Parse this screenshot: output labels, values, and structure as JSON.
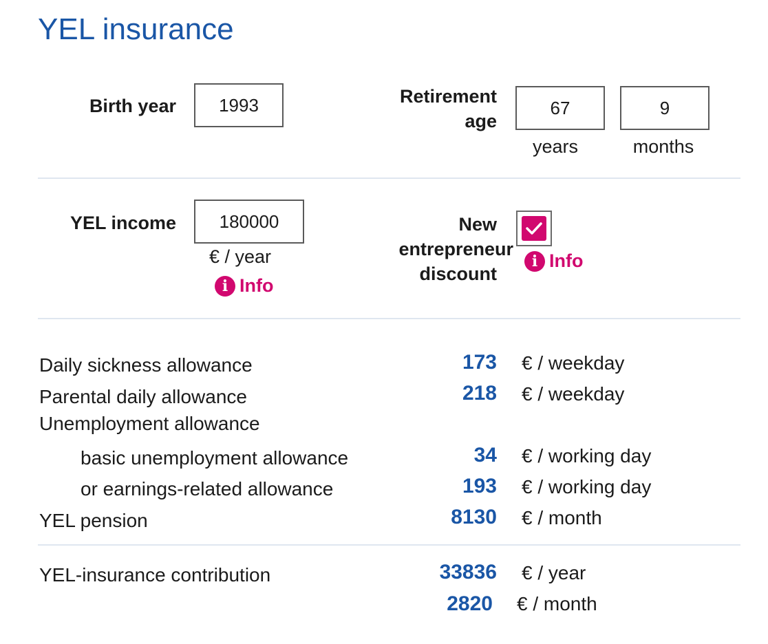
{
  "title": "YEL insurance",
  "birth_year": {
    "label": "Birth year",
    "value": "1993"
  },
  "retirement_age": {
    "label_line1": "Retirement",
    "label_line2": "age",
    "years_value": "67",
    "months_value": "9",
    "years_label": "years",
    "months_label": "months"
  },
  "yel_income": {
    "label": "YEL income",
    "value": "180000",
    "unit": "€ / year",
    "info": "Info"
  },
  "new_entrepreneur_discount": {
    "label_line1": "New",
    "label_line2": "entrepreneur",
    "label_line3": "discount",
    "checked": true,
    "info": "Info"
  },
  "results": {
    "daily_sickness": {
      "label": "Daily sickness allowance",
      "value": "173",
      "unit": "€ / weekday"
    },
    "parental_daily": {
      "label": "Parental daily allowance",
      "value": "218",
      "unit": "€ / weekday"
    },
    "unemployment": {
      "label": "Unemployment allowance"
    },
    "basic_unemployment": {
      "label": "basic unemployment allowance",
      "value": "34",
      "unit": "€ / working day"
    },
    "earnings_related": {
      "label": "or earnings-related allowance",
      "value": "193",
      "unit": "€ / working day"
    },
    "yel_pension": {
      "label": "YEL pension",
      "value": "8130",
      "unit": "€ / month"
    }
  },
  "contribution": {
    "label": "YEL-insurance contribution",
    "year_value": "33836",
    "year_unit": "€ / year",
    "month_value": "2820",
    "month_unit": "€ / month"
  },
  "colors": {
    "accent_blue": "#1a56a6",
    "accent_magenta": "#d1086f",
    "divider": "#dfe6f0"
  }
}
